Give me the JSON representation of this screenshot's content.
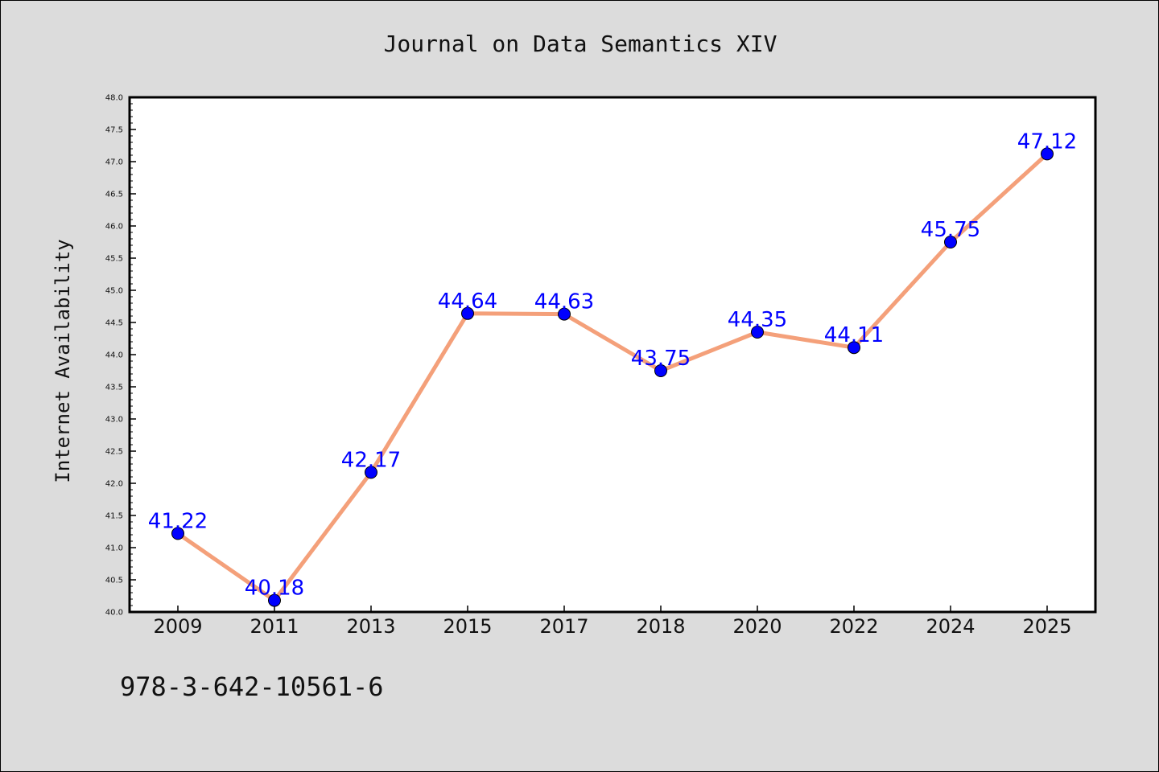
{
  "chart_data": {
    "type": "line",
    "title": "Journal on Data Semantics XIV",
    "xlabel": "",
    "ylabel": "Internet Availability",
    "categories": [
      "2009",
      "2011",
      "2013",
      "2015",
      "2017",
      "2018",
      "2020",
      "2022",
      "2024",
      "2025"
    ],
    "series": [
      {
        "values": [
          41.22,
          40.18,
          42.17,
          44.64,
          44.63,
          43.75,
          44.35,
          44.11,
          45.75,
          47.12
        ],
        "data_labels": [
          "41.22",
          "40.18",
          "42.17",
          "44.64",
          "44.63",
          "43.75",
          "44.35",
          "44.11",
          "45.75",
          "47.12"
        ],
        "line_color": "#f4a07a",
        "marker_color": "#0000ff"
      }
    ],
    "ylim": [
      40.0,
      48.0
    ],
    "yticks": [
      "40.0",
      "40.5",
      "41.0",
      "41.5",
      "42.0",
      "42.5",
      "43.0",
      "43.5",
      "44.0",
      "44.5",
      "45.0",
      "45.5",
      "46.0",
      "46.5",
      "47.0",
      "47.5",
      "48.0"
    ],
    "grid": false,
    "legend": "none",
    "annotation": "978-3-642-10561-6",
    "colors": {
      "background": "#dcdcdc",
      "plot_background": "#ffffff",
      "label_color": "#0000ff"
    }
  }
}
